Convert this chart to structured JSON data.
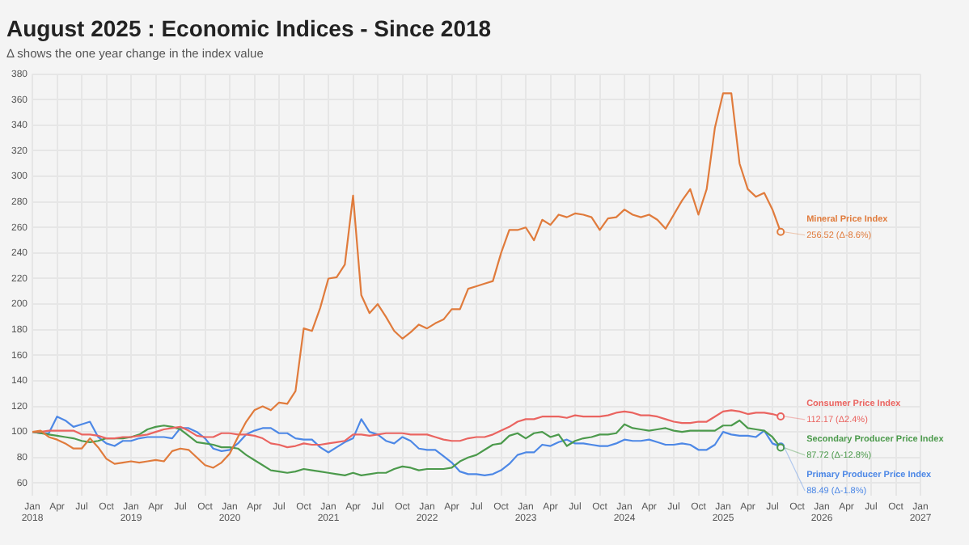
{
  "chart_data": {
    "type": "line",
    "title": "August 2025 : Economic Indices - Since 2018",
    "subtitle": "Δ shows the one year change in the index value",
    "x": [
      "2018-01",
      "2018-02",
      "2018-03",
      "2018-04",
      "2018-05",
      "2018-06",
      "2018-07",
      "2018-08",
      "2018-09",
      "2018-10",
      "2018-11",
      "2018-12",
      "2019-01",
      "2019-02",
      "2019-03",
      "2019-04",
      "2019-05",
      "2019-06",
      "2019-07",
      "2019-08",
      "2019-09",
      "2019-10",
      "2019-11",
      "2019-12",
      "2020-01",
      "2020-02",
      "2020-03",
      "2020-04",
      "2020-05",
      "2020-06",
      "2020-07",
      "2020-08",
      "2020-09",
      "2020-10",
      "2020-11",
      "2020-12",
      "2021-01",
      "2021-02",
      "2021-03",
      "2021-04",
      "2021-05",
      "2021-06",
      "2021-07",
      "2021-08",
      "2021-09",
      "2021-10",
      "2021-11",
      "2021-12",
      "2022-01",
      "2022-02",
      "2022-03",
      "2022-04",
      "2022-05",
      "2022-06",
      "2022-07",
      "2022-08",
      "2022-09",
      "2022-10",
      "2022-11",
      "2022-12",
      "2023-01",
      "2023-02",
      "2023-03",
      "2023-04",
      "2023-05",
      "2023-06",
      "2023-07",
      "2023-08",
      "2023-09",
      "2023-10",
      "2023-11",
      "2023-12",
      "2024-01",
      "2024-02",
      "2024-03",
      "2024-04",
      "2024-05",
      "2024-06",
      "2024-07",
      "2024-08",
      "2024-09",
      "2024-10",
      "2024-11",
      "2024-12",
      "2025-01",
      "2025-02",
      "2025-03",
      "2025-04",
      "2025-05",
      "2025-06",
      "2025-07",
      "2025-08"
    ],
    "series": [
      {
        "name": "Mineral Price Index",
        "color": "#e07b3c",
        "values": [
          100,
          101,
          96,
          94,
          91,
          87,
          87,
          95,
          88,
          79,
          75,
          76,
          77,
          76,
          77,
          78,
          77,
          85,
          87,
          86,
          80,
          74,
          72,
          76,
          83,
          96,
          108,
          117,
          120,
          117,
          123,
          122,
          132,
          181,
          179,
          197,
          220,
          221,
          231,
          285,
          207,
          193,
          200,
          190,
          179,
          173,
          178,
          184,
          181,
          185,
          188,
          196,
          196,
          212,
          214,
          216,
          218,
          240,
          258,
          258,
          260,
          250,
          266,
          262,
          270,
          268,
          271,
          270,
          268,
          258,
          267,
          268,
          274,
          270,
          268,
          270,
          266,
          259,
          270,
          281,
          290,
          270,
          290,
          338,
          365,
          365,
          310,
          290,
          284,
          287,
          274,
          256.52
        ]
      },
      {
        "name": "Consumer Price Index",
        "color": "#ea6460",
        "values": [
          100,
          100,
          101,
          101,
          101,
          101,
          98,
          98,
          97,
          95,
          95,
          96,
          96,
          97,
          98,
          100,
          102,
          103,
          104,
          101,
          97,
          96,
          96,
          99,
          99,
          98,
          98,
          97,
          95,
          91,
          90,
          88,
          89,
          91,
          90,
          90,
          91,
          92,
          93,
          98,
          98,
          97,
          98,
          99,
          99,
          99,
          98,
          98,
          98,
          96,
          94,
          93,
          93,
          95,
          96,
          96,
          98,
          101,
          104,
          108,
          110,
          110,
          112,
          112,
          112,
          111,
          113,
          112,
          112,
          112,
          113,
          115,
          116,
          115,
          113,
          113,
          112,
          110,
          108,
          107,
          107,
          108,
          108,
          112,
          116,
          117,
          116,
          114,
          115,
          115,
          114,
          112.17
        ]
      },
      {
        "name": "Secondary Producer Price Index",
        "color": "#4c9a4c",
        "values": [
          100,
          99,
          98,
          97,
          96,
          95,
          93,
          92,
          93,
          95,
          95,
          95,
          96,
          98,
          102,
          104,
          105,
          104,
          102,
          97,
          92,
          91,
          90,
          88,
          88,
          87,
          82,
          78,
          74,
          70,
          69,
          68,
          69,
          71,
          70,
          69,
          68,
          67,
          66,
          68,
          66,
          67,
          68,
          68,
          71,
          73,
          72,
          70,
          71,
          71,
          71,
          72,
          77,
          80,
          82,
          86,
          90,
          91,
          97,
          99,
          95,
          99,
          100,
          96,
          98,
          89,
          93,
          95,
          96,
          98,
          98,
          99,
          106,
          103,
          102,
          101,
          102,
          103,
          101,
          100,
          101,
          101,
          101,
          101,
          105,
          105,
          109,
          103,
          102,
          101,
          96,
          87.72
        ]
      },
      {
        "name": "Primary Producer Price Index",
        "color": "#4d88e6",
        "values": [
          100,
          99,
          99,
          112,
          109,
          104,
          106,
          108,
          96,
          91,
          89,
          93,
          93,
          95,
          96,
          96,
          96,
          95,
          103,
          103,
          100,
          95,
          87,
          85,
          86,
          91,
          98,
          101,
          103,
          103,
          99,
          99,
          95,
          94,
          94,
          88,
          84,
          88,
          92,
          95,
          110,
          100,
          98,
          93,
          91,
          96,
          93,
          87,
          86,
          86,
          81,
          76,
          69,
          67,
          67,
          66,
          67,
          70,
          75,
          82,
          84,
          84,
          90,
          89,
          92,
          94,
          91,
          91,
          90,
          89,
          89,
          91,
          94,
          93,
          93,
          94,
          92,
          90,
          90,
          91,
          90,
          86,
          86,
          90,
          100,
          98,
          97,
          97,
          96,
          101,
          91,
          88.49
        ]
      }
    ],
    "annotations": [
      {
        "text": "256.52 (Δ-8.6%)",
        "x": "2025-08",
        "y": 256.52
      },
      {
        "text": "112.17 (Δ2.4%)",
        "x": "2025-08",
        "y": 112.17
      },
      {
        "text": "87.72 (Δ-12.8%)",
        "x": "2025-08",
        "y": 87.72
      },
      {
        "text": "88.49 (Δ-1.8%)",
        "x": "2025-08",
        "y": 88.49
      }
    ],
    "xlim": [
      "2018-01",
      "2027-01"
    ],
    "xticks": [
      {
        "value": "2018-01",
        "label": "Jan 2018"
      },
      {
        "value": "2018-04",
        "label": "Apr"
      },
      {
        "value": "2018-07",
        "label": "Jul"
      },
      {
        "value": "2018-10",
        "label": "Oct"
      },
      {
        "value": "2019-01",
        "label": "Jan 2019"
      },
      {
        "value": "2019-04",
        "label": "Apr"
      },
      {
        "value": "2019-07",
        "label": "Jul"
      },
      {
        "value": "2019-10",
        "label": "Oct"
      },
      {
        "value": "2020-01",
        "label": "Jan 2020"
      },
      {
        "value": "2020-04",
        "label": "Apr"
      },
      {
        "value": "2020-07",
        "label": "Jul"
      },
      {
        "value": "2020-10",
        "label": "Oct"
      },
      {
        "value": "2021-01",
        "label": "Jan 2021"
      },
      {
        "value": "2021-04",
        "label": "Apr"
      },
      {
        "value": "2021-07",
        "label": "Jul"
      },
      {
        "value": "2021-10",
        "label": "Oct"
      },
      {
        "value": "2022-01",
        "label": "Jan 2022"
      },
      {
        "value": "2022-04",
        "label": "Apr"
      },
      {
        "value": "2022-07",
        "label": "Jul"
      },
      {
        "value": "2022-10",
        "label": "Oct"
      },
      {
        "value": "2023-01",
        "label": "Jan 2023"
      },
      {
        "value": "2023-04",
        "label": "Apr"
      },
      {
        "value": "2023-07",
        "label": "Jul"
      },
      {
        "value": "2023-10",
        "label": "Oct"
      },
      {
        "value": "2024-01",
        "label": "Jan 2024"
      },
      {
        "value": "2024-04",
        "label": "Apr"
      },
      {
        "value": "2024-07",
        "label": "Jul"
      },
      {
        "value": "2024-10",
        "label": "Oct"
      },
      {
        "value": "2025-01",
        "label": "Jan 2025"
      },
      {
        "value": "2025-04",
        "label": "Apr"
      },
      {
        "value": "2025-07",
        "label": "Jul"
      },
      {
        "value": "2025-10",
        "label": "Oct"
      },
      {
        "value": "2026-01",
        "label": "Jan 2026"
      },
      {
        "value": "2026-04",
        "label": "Apr"
      },
      {
        "value": "2026-07",
        "label": "Jul"
      },
      {
        "value": "2026-10",
        "label": "Oct"
      },
      {
        "value": "2027-01",
        "label": "Jan 2027"
      }
    ],
    "ylim": [
      50,
      380
    ],
    "yticks": [
      60,
      80,
      100,
      120,
      140,
      160,
      180,
      200,
      220,
      240,
      260,
      280,
      300,
      320,
      340,
      360,
      380
    ],
    "grid": true
  }
}
